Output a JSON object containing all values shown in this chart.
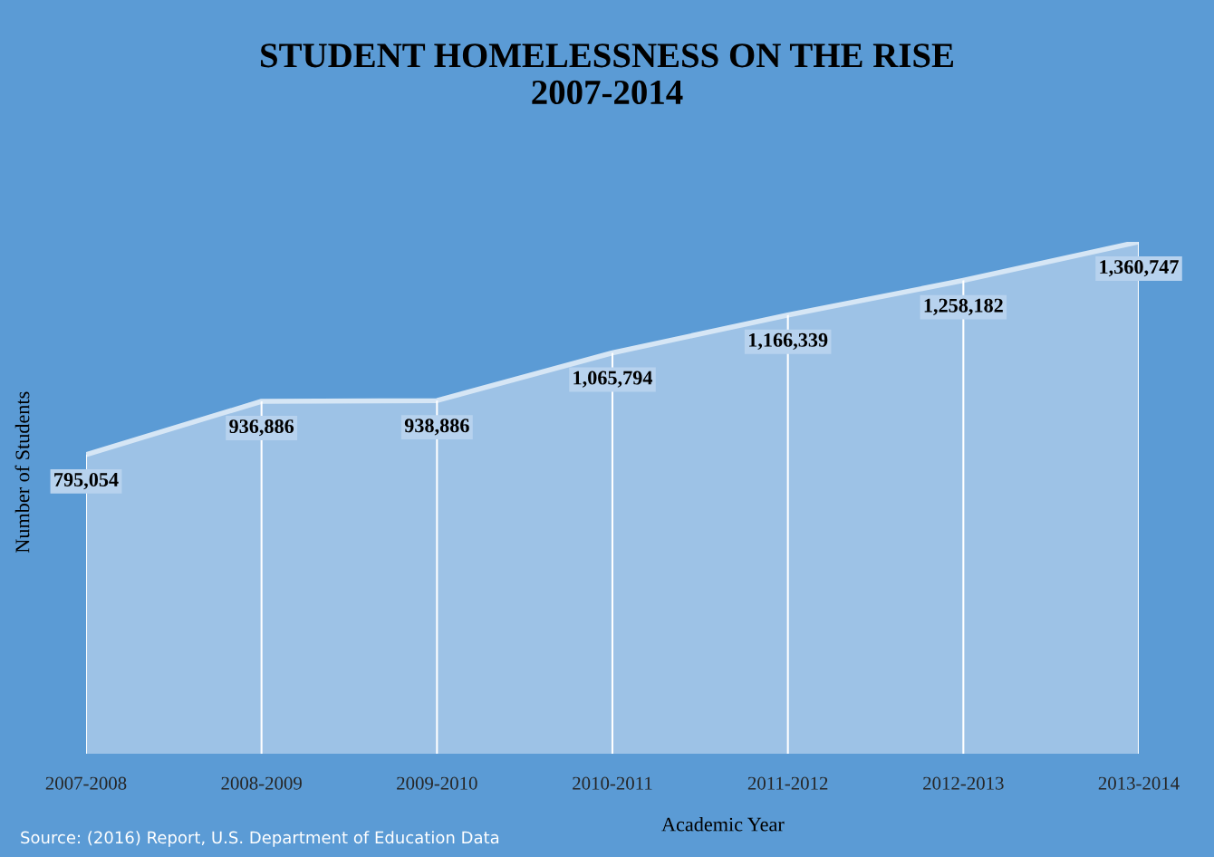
{
  "chart_data": {
    "type": "area",
    "title": "STUDENT HOMELESSNESS ON THE RISE\n2007-2014",
    "xlabel": "Academic Year",
    "ylabel": "Number of Students",
    "categories": [
      "2007-2008",
      "2008-2009",
      "2009-2010",
      "2010-2011",
      "2011-2012",
      "2012-2013",
      "2013-2014"
    ],
    "values": [
      795054,
      936886,
      938886,
      1065794,
      1166339,
      1258182,
      1360747
    ],
    "value_labels": [
      "795,054",
      "936,886",
      "938,886",
      "1,065,794",
      "1,166,339",
      "1,258,182",
      "1,360,747"
    ],
    "color": "#a9c9e9",
    "grid": "x",
    "legend": false,
    "annotations": [
      "Source: (2016) Report, U.S. Department of Education Data"
    ]
  }
}
